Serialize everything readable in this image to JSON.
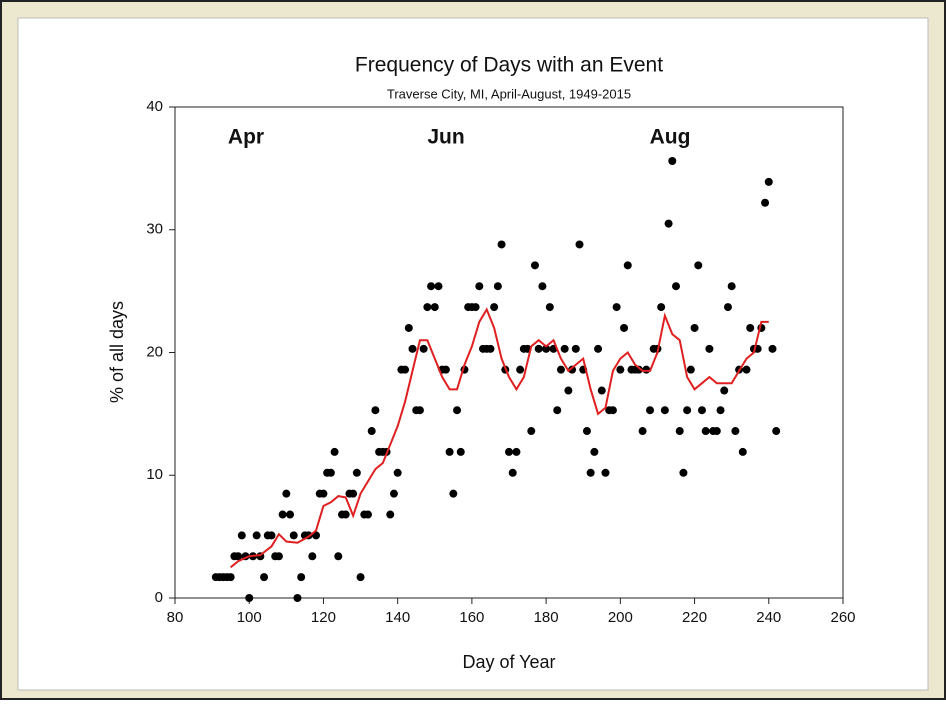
{
  "chart_data": {
    "type": "scatter",
    "title": "Frequency of Days with an Event",
    "subtitle": "Traverse City, MI, April-August, 1949-2015",
    "x_label": "Day of Year",
    "y_label": "% of all days",
    "annotations": [
      "Apr",
      "Jun",
      "Aug"
    ],
    "xlim": [
      80,
      260
    ],
    "xticks": [
      80,
      100,
      120,
      140,
      160,
      180,
      200,
      220,
      240,
      260
    ],
    "ylim": [
      0,
      40
    ],
    "yticks": [
      0,
      10,
      20,
      30,
      40
    ],
    "grid": false,
    "points": {
      "color": "#000000",
      "x": [
        91,
        92,
        93,
        94,
        95,
        96,
        97,
        98,
        99,
        100,
        101,
        102,
        103,
        104,
        105,
        106,
        107,
        108,
        109,
        110,
        111,
        112,
        113,
        114,
        115,
        116,
        117,
        118,
        119,
        120,
        121,
        122,
        123,
        124,
        125,
        126,
        127,
        128,
        129,
        130,
        131,
        132,
        133,
        134,
        135,
        136,
        137,
        138,
        139,
        140,
        141,
        142,
        143,
        144,
        145,
        146,
        147,
        148,
        149,
        150,
        151,
        152,
        153,
        154,
        155,
        156,
        157,
        158,
        159,
        160,
        161,
        162,
        163,
        164,
        165,
        166,
        167,
        168,
        169,
        170,
        171,
        172,
        173,
        174,
        175,
        176,
        177,
        178,
        179,
        180,
        181,
        182,
        183,
        184,
        185,
        186,
        187,
        188,
        189,
        190,
        191,
        192,
        193,
        194,
        195,
        196,
        197,
        198,
        199,
        200,
        201,
        202,
        203,
        204,
        205,
        206,
        207,
        208,
        209,
        210,
        211,
        212,
        213,
        214,
        215,
        216,
        217,
        218,
        219,
        220,
        221,
        222,
        223,
        224,
        225,
        226,
        227,
        228,
        229,
        230,
        231,
        232,
        233,
        234,
        235,
        236,
        237,
        238,
        239,
        240,
        241,
        242
      ],
      "values": [
        1.7,
        1.7,
        1.7,
        1.7,
        1.7,
        3.4,
        3.4,
        5.1,
        3.4,
        0,
        3.4,
        5.1,
        3.4,
        1.7,
        5.1,
        5.1,
        3.4,
        3.4,
        6.8,
        8.5,
        6.8,
        5.1,
        0,
        1.7,
        5.1,
        5.1,
        3.4,
        5.1,
        8.5,
        8.5,
        10.2,
        10.2,
        11.9,
        3.4,
        6.8,
        6.8,
        8.5,
        8.5,
        10.2,
        1.7,
        6.8,
        6.8,
        13.6,
        15.3,
        11.9,
        11.9,
        11.9,
        6.8,
        8.5,
        10.2,
        18.6,
        18.6,
        22.0,
        20.3,
        15.3,
        15.3,
        20.3,
        23.7,
        25.4,
        23.7,
        25.4,
        18.6,
        18.6,
        11.9,
        8.5,
        15.3,
        11.9,
        18.6,
        23.7,
        23.7,
        23.7,
        25.4,
        20.3,
        20.3,
        20.3,
        23.7,
        25.4,
        28.8,
        18.6,
        11.9,
        10.2,
        11.9,
        18.6,
        20.3,
        20.3,
        13.6,
        27.1,
        20.3,
        25.4,
        20.3,
        23.7,
        20.3,
        15.3,
        18.6,
        20.3,
        16.9,
        18.6,
        20.3,
        28.8,
        18.6,
        13.6,
        10.2,
        11.9,
        20.3,
        16.9,
        10.2,
        15.3,
        15.3,
        23.7,
        18.6,
        22.0,
        27.1,
        18.6,
        18.6,
        18.6,
        13.6,
        18.6,
        15.3,
        20.3,
        20.3,
        23.7,
        15.3,
        30.5,
        35.6,
        25.4,
        13.6,
        10.2,
        15.3,
        18.6,
        22.0,
        27.1,
        15.3,
        13.6,
        20.3,
        13.6,
        13.6,
        15.3,
        16.9,
        23.7,
        25.4,
        13.6,
        18.6,
        11.9,
        18.6,
        22.0,
        20.3,
        20.3,
        22.0,
        32.2,
        33.9,
        20.3,
        13.6
      ]
    },
    "line": {
      "color": "#e02020",
      "x": [
        95,
        97,
        100,
        103,
        106,
        108,
        110,
        113,
        116,
        118,
        120,
        122,
        124,
        126,
        128,
        130,
        132,
        134,
        136,
        138,
        140,
        142,
        144,
        146,
        148,
        150,
        152,
        154,
        156,
        158,
        160,
        162,
        164,
        166,
        168,
        170,
        172,
        174,
        176,
        178,
        180,
        182,
        184,
        186,
        188,
        190,
        192,
        194,
        196,
        198,
        200,
        202,
        204,
        206,
        208,
        210,
        212,
        214,
        216,
        218,
        220,
        222,
        224,
        226,
        228,
        230,
        232,
        234,
        236,
        238,
        240
      ],
      "values": [
        2.5,
        3.0,
        3.4,
        3.5,
        4.2,
        5.2,
        4.6,
        4.5,
        5.0,
        5.5,
        7.5,
        7.8,
        8.3,
        8.2,
        6.7,
        8.5,
        9.5,
        10.5,
        11.0,
        12.5,
        14.0,
        16.0,
        18.5,
        21.0,
        21.0,
        19.5,
        18.0,
        17.0,
        17.0,
        19.0,
        20.5,
        22.5,
        23.5,
        22.0,
        19.5,
        18.0,
        17.0,
        18.0,
        20.5,
        21.0,
        20.5,
        21.0,
        19.5,
        18.5,
        19.0,
        19.5,
        17.0,
        15.0,
        15.5,
        18.5,
        19.5,
        20.0,
        19.0,
        18.5,
        18.5,
        20.0,
        23.0,
        21.5,
        21.0,
        18.0,
        17.0,
        17.5,
        18.0,
        17.5,
        17.5,
        17.5,
        18.5,
        19.5,
        20.0,
        22.5,
        22.5
      ]
    }
  }
}
